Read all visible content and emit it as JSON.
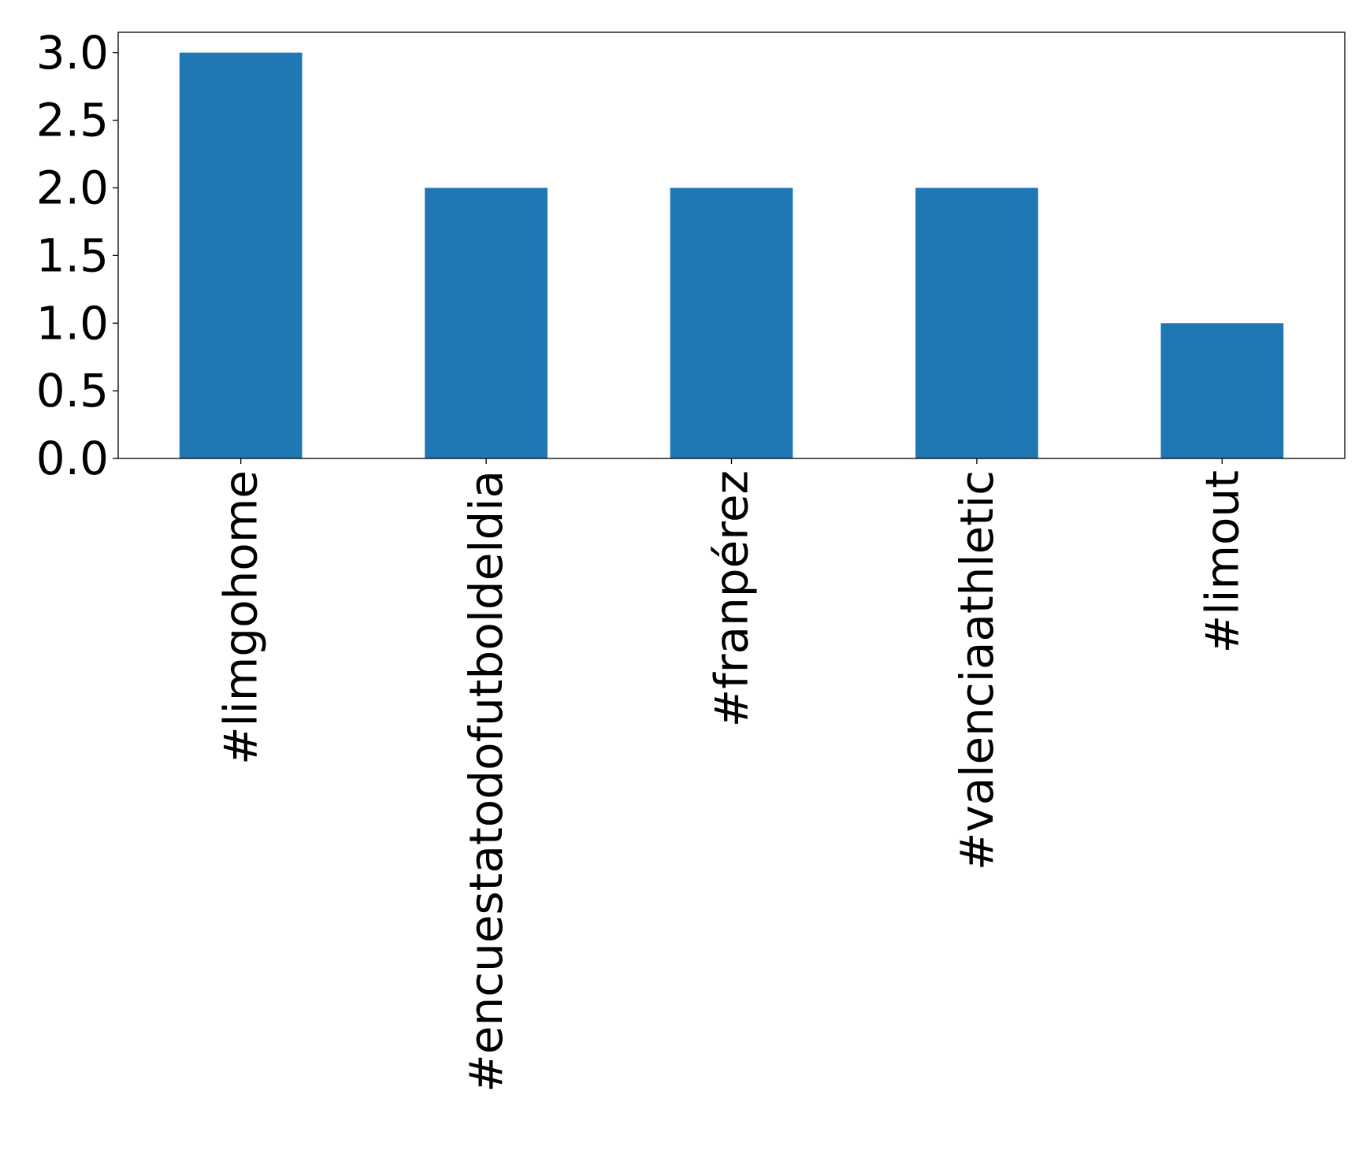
{
  "chart_data": {
    "type": "bar",
    "title": "",
    "xlabel": "",
    "ylabel": "",
    "categories": [
      "#limgohome",
      "#encuestatodofutboldeldia",
      "#franpérez",
      "#valenciaathletic",
      "#limout"
    ],
    "values": [
      3,
      2,
      2,
      2,
      1
    ],
    "ylim": [
      0,
      3.15
    ],
    "yticks": [
      0.0,
      0.5,
      1.0,
      1.5,
      2.0,
      2.5,
      3.0
    ],
    "ytick_labels": [
      "0.0",
      "0.5",
      "1.0",
      "1.5",
      "2.0",
      "2.5",
      "3.0"
    ],
    "grid": false,
    "legend": "none",
    "bar_color": "#1f77b4",
    "axis_color": "#000000",
    "background_color": "#ffffff"
  }
}
